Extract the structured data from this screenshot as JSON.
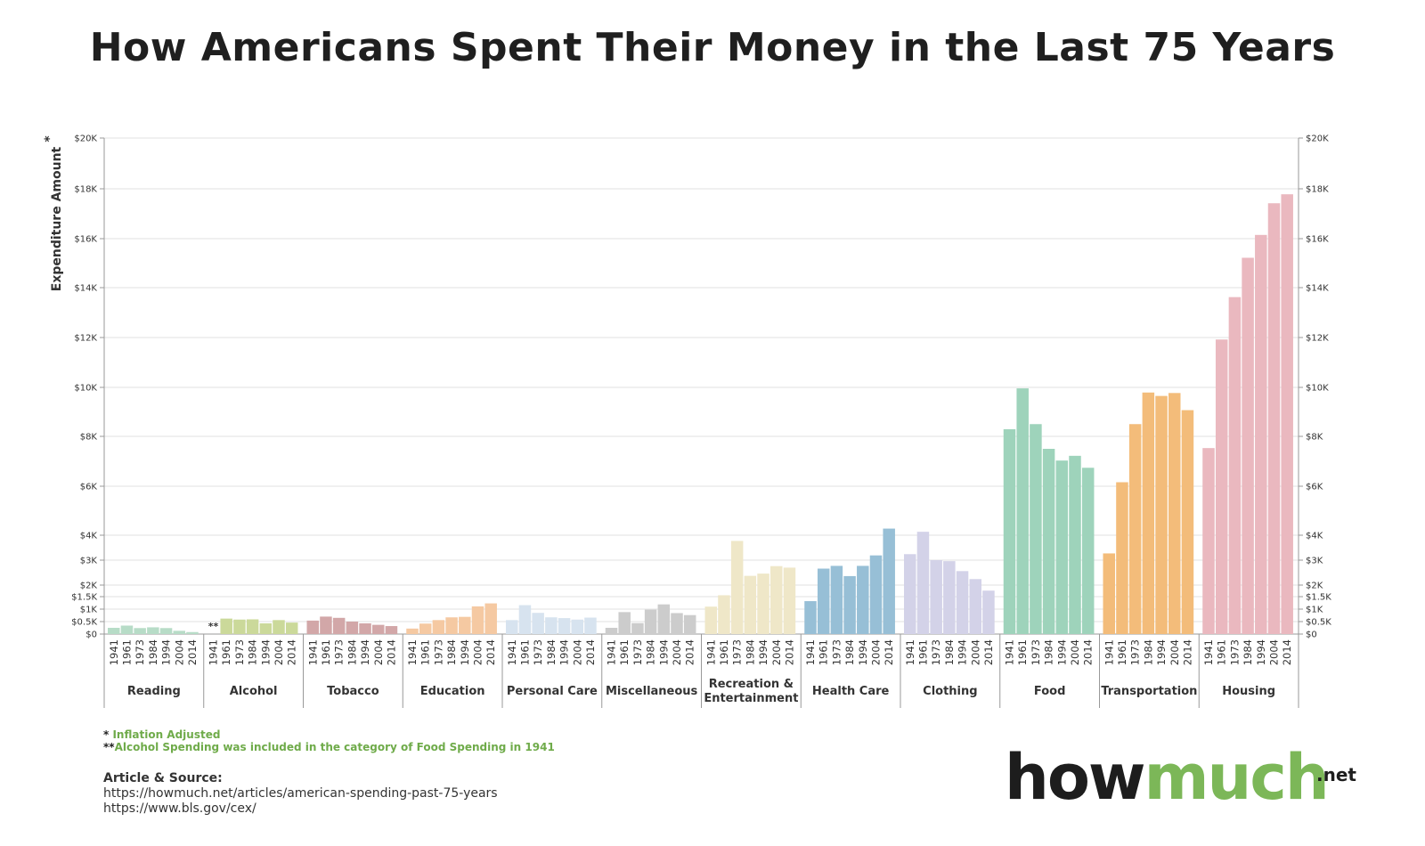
{
  "title": "How Americans Spent Their Money in the Last 75 Years",
  "chart_data": {
    "type": "bar",
    "ylabel": "Expenditure Amount",
    "ylabel_mark": "*",
    "years": [
      "1941",
      "1961",
      "1973",
      "1984",
      "1994",
      "2004",
      "2014"
    ],
    "y_ticks": [
      {
        "v": 0,
        "label": "$0"
      },
      {
        "v": 500,
        "label": "$0.5K"
      },
      {
        "v": 1000,
        "label": "$1K"
      },
      {
        "v": 1500,
        "label": "$1.5K"
      },
      {
        "v": 2000,
        "label": "$2K"
      },
      {
        "v": 3000,
        "label": "$3K"
      },
      {
        "v": 4000,
        "label": "$4K"
      },
      {
        "v": 6000,
        "label": "$6K"
      },
      {
        "v": 8000,
        "label": "$8K"
      },
      {
        "v": 10000,
        "label": "$10K"
      },
      {
        "v": 12000,
        "label": "$12K"
      },
      {
        "v": 14000,
        "label": "$14K"
      },
      {
        "v": 16000,
        "label": "$16K"
      },
      {
        "v": 18000,
        "label": "$18K"
      },
      {
        "v": 20000,
        "label": "$20K"
      }
    ],
    "ylim": [
      0,
      20000
    ],
    "groups": [
      {
        "name": "Reading",
        "color": "#b7dcc7",
        "values": [
          250,
          340,
          240,
          270,
          240,
          130,
          80
        ]
      },
      {
        "name": "Alcohol",
        "color": "#cbd99a",
        "values": [
          null,
          620,
          580,
          590,
          430,
          560,
          460
        ],
        "note": "**"
      },
      {
        "name": "Tobacco",
        "color": "#d2a7a8",
        "values": [
          540,
          700,
          650,
          500,
          430,
          370,
          320
        ]
      },
      {
        "name": "Education",
        "color": "#f5c9a2",
        "values": [
          220,
          420,
          560,
          670,
          690,
          1110,
          1230
        ]
      },
      {
        "name": "Personal Care",
        "color": "#d7e3ef",
        "values": [
          560,
          1160,
          850,
          670,
          640,
          580,
          660
        ]
      },
      {
        "name": "Miscellaneous",
        "color": "#cccccc",
        "values": [
          250,
          880,
          440,
          980,
          1190,
          840,
          760
        ]
      },
      {
        "name": "Recreation & Entertainment",
        "color": "#efe7c8",
        "values": [
          1100,
          1560,
          3770,
          2370,
          2460,
          2760,
          2700
        ]
      },
      {
        "name": "Health Care",
        "color": "#97bfd6",
        "values": [
          1320,
          2660,
          2770,
          2360,
          2770,
          3190,
          4270
        ]
      },
      {
        "name": "Clothing",
        "color": "#d3d2e8",
        "values": [
          3240,
          4140,
          3000,
          2960,
          2560,
          2240,
          1760
        ]
      },
      {
        "name": "Food",
        "color": "#9ed3bb",
        "values": [
          8290,
          9960,
          8500,
          7500,
          7030,
          7220,
          6740
        ]
      },
      {
        "name": "Transportation",
        "color": "#f3bc7a",
        "values": [
          3270,
          6160,
          8500,
          9790,
          9650,
          9770,
          9070
        ]
      },
      {
        "name": "Housing",
        "color": "#eab8bf",
        "values": [
          7530,
          11920,
          13620,
          15220,
          16150,
          17420,
          17780
        ]
      }
    ]
  },
  "notes": {
    "note1_mark": "*",
    "note1_text": "Inflation Adjusted",
    "note2_mark": "**",
    "note2_text": "Alcohol Spending was included in the category of Food Spending in 1941"
  },
  "source": {
    "heading": "Article & Source:",
    "url1": "https://howmuch.net/articles/american-spending-past-75-years",
    "url2": "https://www.bls.gov/cex/"
  },
  "logo": {
    "how": "how",
    "much": "much",
    "net": ".net"
  }
}
